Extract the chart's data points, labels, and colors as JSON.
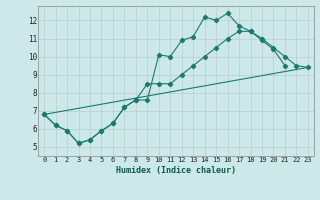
{
  "title": "",
  "xlabel": "Humidex (Indice chaleur)",
  "ylabel": "",
  "bg_color": "#cce8e8",
  "line_color": "#1a7a6e",
  "grid_color": "#bbcccc",
  "xlim": [
    -0.5,
    23.5
  ],
  "ylim": [
    4.5,
    12.8
  ],
  "xticks": [
    0,
    1,
    2,
    3,
    4,
    5,
    6,
    7,
    8,
    9,
    10,
    11,
    12,
    13,
    14,
    15,
    16,
    17,
    18,
    19,
    20,
    21,
    22,
    23
  ],
  "yticks": [
    5,
    6,
    7,
    8,
    9,
    10,
    11,
    12
  ],
  "line1_x": [
    0,
    1,
    2,
    3,
    4,
    5,
    6,
    7,
    8,
    9,
    10,
    11,
    12,
    13,
    14,
    15,
    16,
    17,
    18,
    19,
    20,
    21
  ],
  "line1_y": [
    6.8,
    6.2,
    5.9,
    5.2,
    5.4,
    5.9,
    6.3,
    7.2,
    7.6,
    7.6,
    10.1,
    10.0,
    10.9,
    11.1,
    12.2,
    12.0,
    12.4,
    11.7,
    11.4,
    10.9,
    10.4,
    9.5
  ],
  "line2_x": [
    0,
    1,
    2,
    3,
    4,
    5,
    6,
    7,
    8,
    9,
    10,
    11,
    12,
    13,
    14,
    15,
    16,
    17,
    18,
    19,
    20,
    21,
    22,
    23
  ],
  "line2_y": [
    6.8,
    6.2,
    5.9,
    5.2,
    5.4,
    5.9,
    6.3,
    7.2,
    7.6,
    8.5,
    8.5,
    8.5,
    9.0,
    9.5,
    10.0,
    10.5,
    11.0,
    11.4,
    11.4,
    11.0,
    10.5,
    10.0,
    9.5,
    9.4
  ],
  "line3_x": [
    0,
    23
  ],
  "line3_y": [
    6.8,
    9.4
  ],
  "xlabel_fontsize": 6.0,
  "tick_fontsize": 5.0
}
